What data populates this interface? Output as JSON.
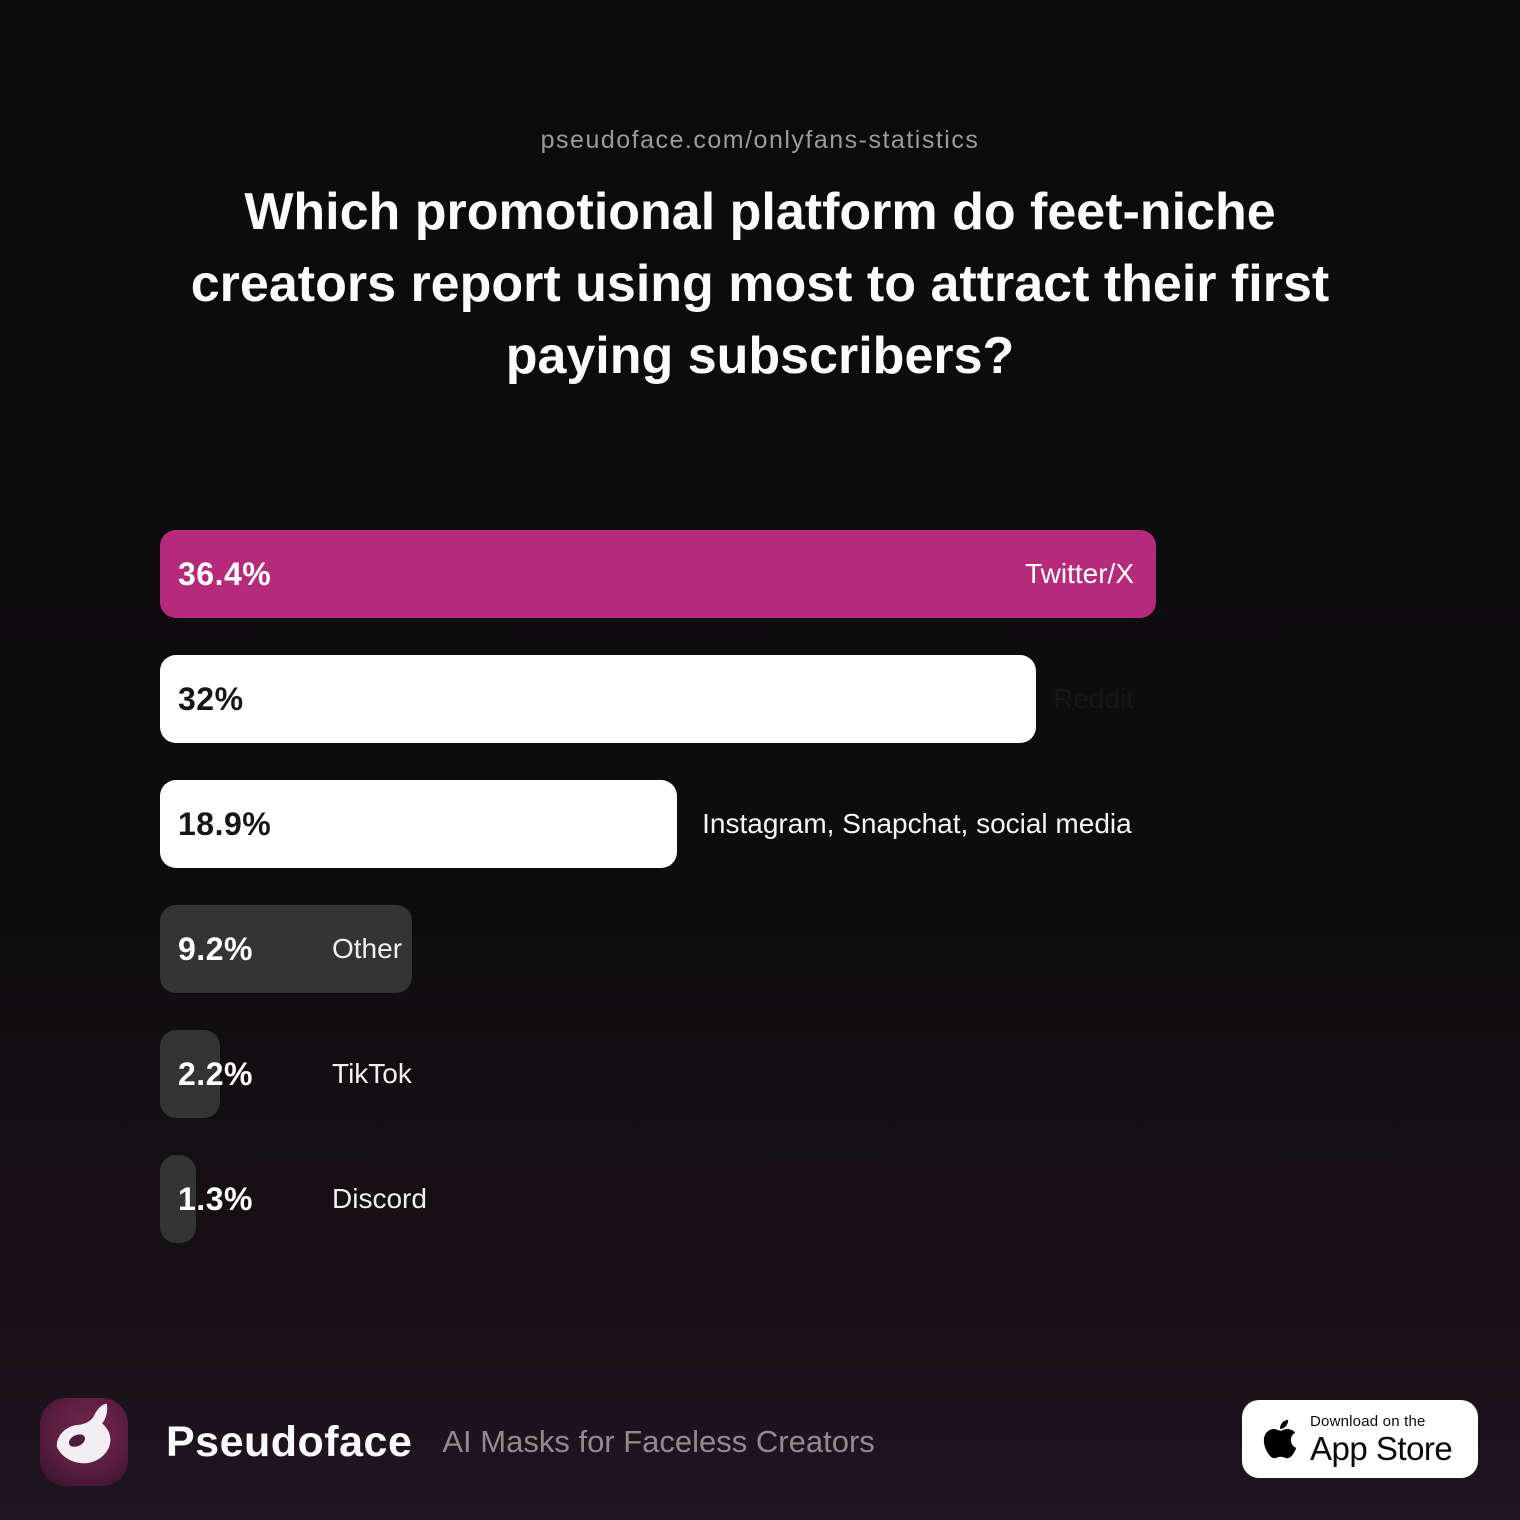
{
  "header": {
    "url": "pseudoface.com/onlyfans-statistics",
    "title": "Which promotional platform do feet-niche creators report using most to attract their first paying subscribers?",
    "title_lines": [
      "Which promotional platform do feet-niche",
      "creators report using most to attract their first",
      "paying subscribers?"
    ]
  },
  "chart_data": {
    "type": "bar",
    "orientation": "horizontal",
    "title": "Which promotional platform do feet-niche creators report using most to attract their first paying subscribers?",
    "categories": [
      "Twitter/X",
      "Reddit",
      "Instagram, Snapchat, social media",
      "Other",
      "TikTok",
      "Discord"
    ],
    "values": [
      36.4,
      32,
      18.9,
      9.2,
      2.2,
      1.3
    ],
    "value_labels": [
      "36.4%",
      "32%",
      "18.9%",
      "9.2%",
      "2.2%",
      "1.3%"
    ],
    "max_value": 36.4,
    "xlabel": "",
    "ylabel": "",
    "grid": false,
    "legend": "none",
    "rows": [
      {
        "label": "Twitter/X",
        "value": 36.4,
        "value_text": "36.4%",
        "bar_color": "#b62a7c",
        "value_color": "#ffffff",
        "label_color": "#ffffff",
        "label_position": "inside-right"
      },
      {
        "label": "Reddit",
        "value": 32,
        "value_text": "32%",
        "bar_color": "#ffffff",
        "value_color": "#161616",
        "label_color": "#161616",
        "label_position": "inside-right"
      },
      {
        "label": "Instagram, Snapchat, social media",
        "value": 18.9,
        "value_text": "18.9%",
        "bar_color": "#ffffff",
        "value_color": "#161616",
        "label_color": "#f5f5f5",
        "label_position": "after-bar"
      },
      {
        "label": "Other",
        "value": 9.2,
        "value_text": "9.2%",
        "bar_color": "#343434",
        "value_color": "#ffffff",
        "label_color": "#f0f0f0",
        "label_position": "after-value"
      },
      {
        "label": "TikTok",
        "value": 2.2,
        "value_text": "2.2%",
        "bar_color": "#343434",
        "value_color": "#ffffff",
        "label_color": "#f0f0f0",
        "label_position": "after-value"
      },
      {
        "label": "Discord",
        "value": 1.3,
        "value_text": "1.3%",
        "bar_color": "#343434",
        "value_color": "#ffffff",
        "label_color": "#f0f0f0",
        "label_position": "after-value"
      }
    ]
  },
  "footer": {
    "brand": "Pseudoface",
    "tagline": "AI Masks for Faceless Creators",
    "logo_icon": "pseudoface-mask-icon",
    "appstore": {
      "line1": "Download on the",
      "line2": "App Store",
      "icon": "apple-icon"
    }
  },
  "colors": {
    "background_top": "#0c0b0c",
    "background_bottom": "#1f1520",
    "accent_pink": "#b62a7c",
    "bar_white": "#ffffff",
    "bar_gray": "#343434",
    "muted_text": "#9b9b9b"
  }
}
